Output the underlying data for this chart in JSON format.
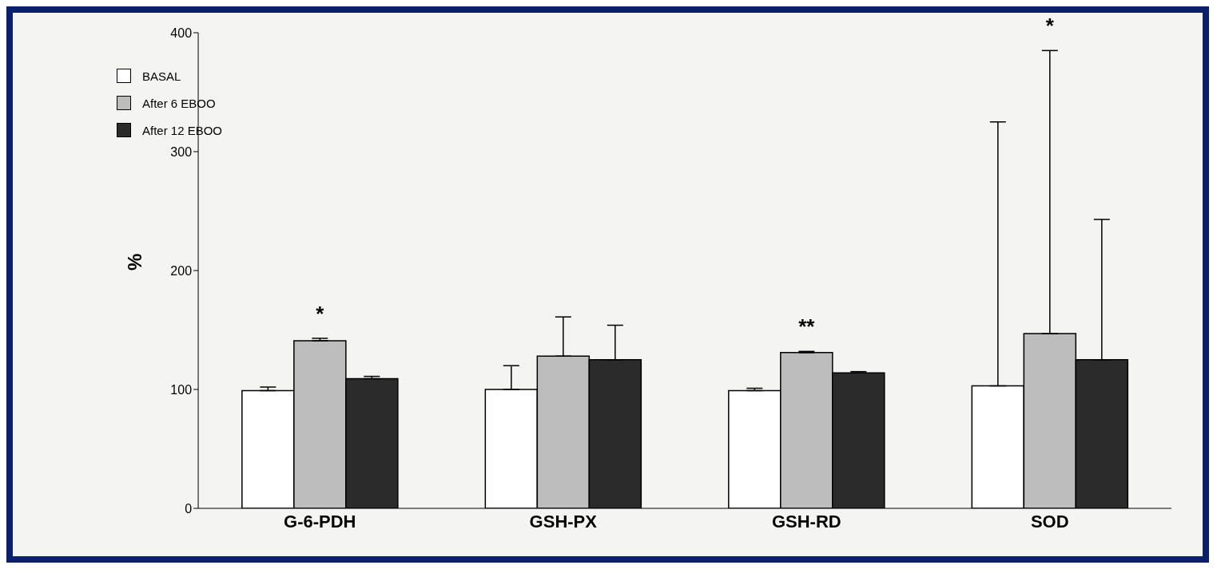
{
  "chart_data": {
    "type": "bar",
    "ylabel": "%",
    "categories": [
      "G-6-PDH",
      "GSH-PX",
      "GSH-RD",
      "SOD"
    ],
    "series": [
      {
        "name": "BASAL",
        "color": "#ffffff",
        "values": [
          99,
          100,
          99,
          103
        ],
        "errors": [
          [
            99,
            102
          ],
          [
            100,
            120
          ],
          [
            99,
            101
          ],
          [
            103,
            325
          ]
        ]
      },
      {
        "name": "After 6 EBOO",
        "color": "#bdbdbd",
        "values": [
          141,
          128,
          131,
          147
        ],
        "errors": [
          [
            141,
            143
          ],
          [
            128,
            161
          ],
          [
            131,
            132
          ],
          [
            147,
            385
          ]
        ]
      },
      {
        "name": "After 12 EBOO",
        "color": "#2b2b2b",
        "values": [
          109,
          125,
          114,
          125
        ],
        "errors": [
          [
            109,
            111
          ],
          [
            125,
            154
          ],
          [
            114,
            115
          ],
          [
            125,
            243
          ]
        ]
      }
    ],
    "ylim": [
      0,
      400
    ],
    "yticks": [
      0,
      100,
      200,
      300,
      400
    ],
    "grid": false,
    "legend": "top left",
    "annotations": [
      "*",
      "**",
      "*"
    ]
  }
}
